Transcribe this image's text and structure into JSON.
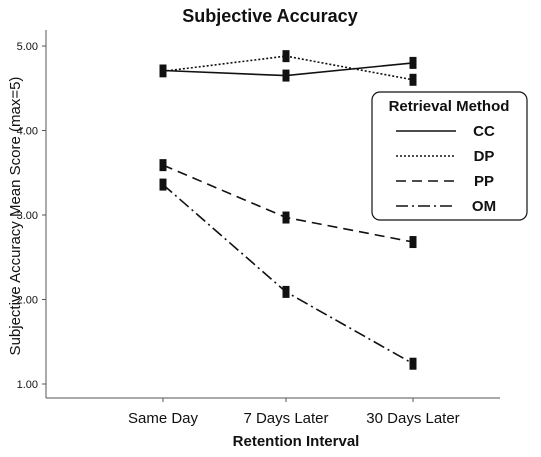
{
  "chart_data": {
    "type": "line",
    "title": "Subjective Accuracy",
    "xlabel": "Retention Interval",
    "ylabel": "Subjective Accuracy Mean Score (max=5)",
    "categories": [
      "Same Day",
      "7 Days Later",
      "30 Days Later"
    ],
    "yticks": [
      "1.00",
      "2.00",
      "3.00",
      "4.00",
      "5.00"
    ],
    "ylim": [
      0.75,
      5.1
    ],
    "grid": false,
    "error_bars": true,
    "legend": {
      "title": "Retrieval Method",
      "placement": "right"
    },
    "series": [
      {
        "name": "CC",
        "values": [
          4.71,
          4.65,
          4.8
        ],
        "style": "solid"
      },
      {
        "name": "DP",
        "values": [
          4.7,
          4.88,
          4.6
        ],
        "style": "dotted"
      },
      {
        "name": "PP",
        "values": [
          3.59,
          2.97,
          2.68
        ],
        "style": "dashed"
      },
      {
        "name": "OM",
        "values": [
          3.36,
          2.09,
          1.24
        ],
        "style": "dashdot"
      }
    ]
  }
}
